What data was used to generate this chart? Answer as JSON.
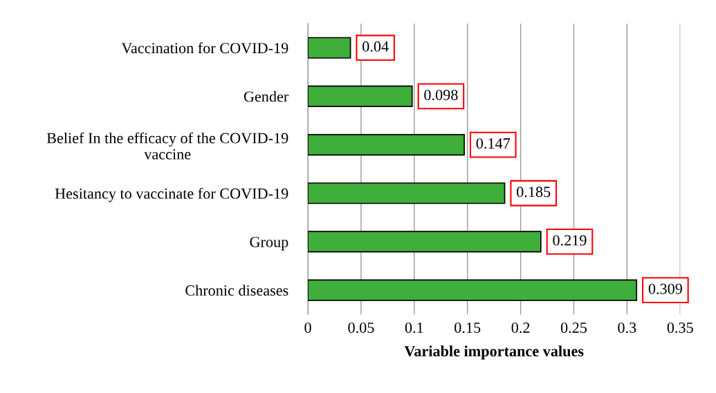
{
  "chart_data": {
    "type": "bar",
    "orientation": "horizontal",
    "xlabel": "Variable importance values",
    "categories": [
      "Vaccination for COVID-19",
      "Gender",
      "Belief In the efficacy of the COVID-19 vaccine",
      "Hesitancy to vaccinate for COVID-19",
      "Group",
      "Chronic diseases"
    ],
    "values": [
      0.04,
      0.098,
      0.147,
      0.185,
      0.219,
      0.309
    ],
    "color": "#3fae3a",
    "xlim": [
      0,
      0.35
    ],
    "xticks": [
      0,
      0.05,
      0.1,
      0.15,
      0.2,
      0.25,
      0.3,
      0.35
    ],
    "grid": "x",
    "data_labels": true
  }
}
